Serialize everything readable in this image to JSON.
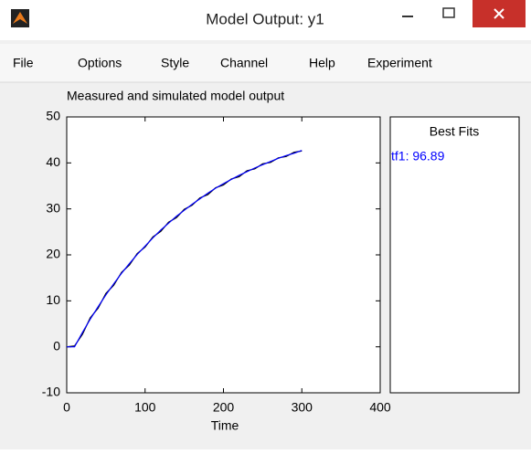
{
  "window": {
    "title": "Model Output: y1"
  },
  "menu": [
    "File",
    "Options",
    "Style",
    "Channel",
    "Help",
    "Experiment"
  ],
  "chart_data": {
    "type": "line",
    "title": "Measured and simulated model output",
    "x_label": "Time",
    "x": [
      0,
      10,
      20,
      30,
      40,
      50,
      60,
      70,
      80,
      90,
      100,
      110,
      120,
      130,
      140,
      150,
      160,
      170,
      180,
      190,
      200,
      210,
      220,
      230,
      240,
      250,
      260,
      270,
      280,
      290,
      300
    ],
    "series": [
      {
        "color": "#000000",
        "values": [
          0,
          0.2,
          2.7,
          6.3,
          8.4,
          11.6,
          13.4,
          16.2,
          17.8,
          20.3,
          21.7,
          23.9,
          25.1,
          27.1,
          28.1,
          29.9,
          30.8,
          32.4,
          33.1,
          34.6,
          35.2,
          36.5,
          37.0,
          38.3,
          38.7,
          39.8,
          40.1,
          41.1,
          41.4,
          42.3,
          42.6
        ]
      },
      {
        "color": "#0000ff",
        "values": [
          0,
          0,
          3.1,
          6.0,
          8.7,
          11.3,
          13.7,
          16.0,
          18.1,
          20.1,
          21.9,
          23.7,
          25.4,
          26.9,
          28.4,
          29.7,
          31.0,
          32.2,
          33.4,
          34.5,
          35.5,
          36.4,
          37.3,
          38.1,
          38.9,
          39.6,
          40.3,
          41.0,
          41.6,
          42.1,
          42.7
        ]
      }
    ],
    "xlim": [
      0,
      400
    ],
    "xticks": [
      0,
      100,
      200,
      300,
      400
    ],
    "ylim": [
      -10,
      50
    ],
    "yticks": [
      -10,
      0,
      10,
      20,
      30,
      40,
      50
    ]
  },
  "best_fits": {
    "title": "Best Fits",
    "entries": [
      "tf1: 96.89"
    ],
    "entry_color": "#0000ff"
  }
}
